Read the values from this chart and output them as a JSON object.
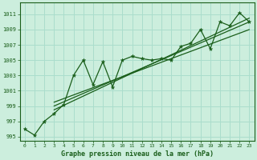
{
  "xlabel": "Graphe pression niveau de la mer (hPa)",
  "bg_color": "#cceedd",
  "grid_color": "#aaddcc",
  "line_color": "#1a5e1a",
  "text_color": "#1a5e1a",
  "xlim": [
    -0.5,
    23.5
  ],
  "ylim": [
    994.5,
    1012.5
  ],
  "yticks": [
    995,
    997,
    999,
    1001,
    1003,
    1005,
    1007,
    1009,
    1011
  ],
  "xticks": [
    0,
    1,
    2,
    3,
    4,
    5,
    6,
    7,
    8,
    9,
    10,
    11,
    12,
    13,
    14,
    15,
    16,
    17,
    18,
    19,
    20,
    21,
    22,
    23
  ],
  "y_main": [
    996.0,
    995.2,
    997.0,
    998.0,
    999.2,
    1003.0,
    1005.0,
    1001.8,
    1004.8,
    1001.5,
    1005.0,
    1005.5,
    1005.2,
    1005.0,
    1005.2,
    1005.0,
    1006.8,
    1007.2,
    1009.0,
    1006.5,
    1010.0,
    1009.5,
    1011.2,
    1010.0
  ],
  "trend_lines": [
    {
      "x": [
        3,
        23
      ],
      "y": [
        999.5,
        1009.0
      ]
    },
    {
      "x": [
        3,
        23
      ],
      "y": [
        999.0,
        1010.0
      ]
    },
    {
      "x": [
        3,
        23
      ],
      "y": [
        998.5,
        1010.5
      ]
    }
  ],
  "figsize": [
    3.2,
    2.0
  ],
  "dpi": 100
}
